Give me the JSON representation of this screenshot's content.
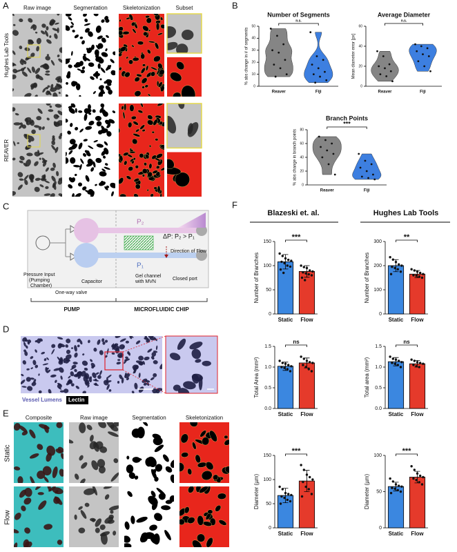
{
  "panel_labels": [
    "A",
    "B",
    "C",
    "D",
    "E",
    "F"
  ],
  "panel_a": {
    "columns": [
      "Raw image",
      "Segmentation",
      "Skeletonization",
      "Subset"
    ],
    "rows": [
      "Hughes Lab Tools",
      "REAVER"
    ]
  },
  "panel_c": {
    "p2": "P₂",
    "p1": "P₁",
    "delta": "ΔP: P₂ > P₁",
    "flow": "Direction of Flow",
    "pressure_input": [
      "Pressure Input",
      "(Pumping",
      "Chamber)"
    ],
    "valve": "One-way valve",
    "capacitor": "Capacitor",
    "gel": [
      "Gel channel",
      "with MVN"
    ],
    "port": "Closed port",
    "pump": "PUMP",
    "chip": "MICROFLUIDIC CHIP"
  },
  "panel_d": {
    "legend": [
      "Vessel Lumens",
      "Lectin"
    ]
  },
  "panel_e": {
    "columns": [
      "Composite",
      "Raw image",
      "Segmentation",
      "Skeletonization"
    ],
    "rows": [
      "Static",
      "Flow"
    ]
  },
  "panel_f": {
    "groups": [
      "Blazeski et. al.",
      "Hughes Lab Tools"
    ]
  },
  "chart_data": [
    {
      "type": "violin",
      "title": "Number of Segments",
      "ylabel": "% abs change in # of segments",
      "categories": [
        "Reaver",
        "Fiji"
      ],
      "colors": [
        "#858585",
        "#3d7fe0"
      ],
      "values": [
        [
          48,
          42,
          35,
          30,
          28,
          22,
          18,
          15,
          10,
          8
        ],
        [
          45,
          25,
          22,
          18,
          15,
          12,
          10,
          8,
          5,
          3
        ]
      ],
      "ylim": [
        0,
        50
      ],
      "yticks": [
        0,
        10,
        20,
        30,
        40,
        50
      ],
      "significance": "n.s."
    },
    {
      "type": "violin",
      "title": "Average Diameter",
      "ylabel": "Mean diameter error [px]",
      "categories": [
        "Reaver",
        "Fiji"
      ],
      "colors": [
        "#858585",
        "#3d7fe0"
      ],
      "values": [
        [
          35,
          30,
          22,
          20,
          18,
          15,
          12,
          10,
          5
        ],
        [
          42,
          40,
          38,
          35,
          32,
          30,
          25,
          20,
          15
        ]
      ],
      "ylim": [
        0,
        60
      ],
      "yticks": [
        0,
        20,
        40,
        60
      ],
      "significance": "n.s."
    },
    {
      "type": "violin",
      "title": "Branch Points",
      "ylabel": "% abs change in branch points",
      "categories": [
        "Reaver",
        "Fiji"
      ],
      "colors": [
        "#858585",
        "#3d7fe0"
      ],
      "values": [
        [
          70,
          65,
          60,
          55,
          50,
          45,
          40,
          30,
          15
        ],
        [
          45,
          35,
          30,
          25,
          20,
          15,
          12,
          10,
          8
        ]
      ],
      "ylim": [
        0,
        80
      ],
      "yticks": [
        0,
        20,
        40,
        60,
        80
      ],
      "significance": "***"
    },
    {
      "type": "bar",
      "ylabel": "Number of Branches",
      "categories": [
        "Static",
        "Flow"
      ],
      "colors": [
        "#3b87e0",
        "#e53a2b"
      ],
      "values": [
        108,
        88
      ],
      "errors": [
        15,
        12
      ],
      "points": [
        [
          125,
          120,
          115,
          112,
          110,
          108,
          105,
          100,
          98,
          92,
          85
        ],
        [
          100,
          97,
          95,
          90,
          88,
          86,
          84,
          82,
          80,
          75,
          70
        ]
      ],
      "ylim": [
        0,
        150
      ],
      "yticks": [
        0,
        50,
        100,
        150
      ],
      "significance": "***"
    },
    {
      "type": "bar",
      "ylabel": "Total Area (mm²)",
      "categories": [
        "Static",
        "Flow"
      ],
      "colors": [
        "#3b87e0",
        "#e53a2b"
      ],
      "values": [
        1.02,
        1.1
      ],
      "errors": [
        0.1,
        0.12
      ],
      "points": [
        [
          1.15,
          1.1,
          1.08,
          1.05,
          1.02,
          1.0,
          0.98,
          0.95,
          0.9
        ],
        [
          1.25,
          1.2,
          1.15,
          1.12,
          1.1,
          1.05,
          1.0,
          0.95,
          0.9
        ]
      ],
      "ylim": [
        0,
        1.5
      ],
      "yticks": [
        {
          "value": 0,
          "label": "0.0"
        },
        0.5,
        {
          "value": 1,
          "label": "1.0"
        },
        1.5
      ],
      "significance": "ns"
    },
    {
      "type": "bar",
      "ylabel": "Diameter (µm)",
      "categories": [
        "Static",
        "Flow"
      ],
      "colors": [
        "#3b87e0",
        "#e53a2b"
      ],
      "values": [
        67,
        97
      ],
      "errors": [
        15,
        22
      ],
      "points": [
        [
          85,
          80,
          72,
          70,
          68,
          65,
          62,
          58,
          55,
          50
        ],
        [
          130,
          120,
          110,
          105,
          100,
          95,
          85,
          80,
          70,
          65
        ]
      ],
      "ylim": [
        0,
        150
      ],
      "yticks": [
        0,
        50,
        100,
        150
      ],
      "significance": "***"
    },
    {
      "type": "bar",
      "ylabel": "Number of Branches",
      "categories": [
        "Static",
        "Flow"
      ],
      "colors": [
        "#3b87e0",
        "#e53a2b"
      ],
      "values": [
        200,
        165
      ],
      "errors": [
        25,
        15
      ],
      "points": [
        [
          235,
          225,
          215,
          205,
          200,
          195,
          190,
          185,
          175,
          165
        ],
        [
          185,
          180,
          175,
          170,
          165,
          160,
          158,
          155,
          150
        ]
      ],
      "ylim": [
        0,
        300
      ],
      "yticks": [
        0,
        100,
        200,
        300
      ],
      "significance": "**"
    },
    {
      "type": "bar",
      "ylabel": "Total area (mm²)",
      "categories": [
        "Static",
        "Flow"
      ],
      "colors": [
        "#3b87e0",
        "#e53a2b"
      ],
      "values": [
        1.13,
        1.08
      ],
      "errors": [
        0.1,
        0.08
      ],
      "points": [
        [
          1.25,
          1.2,
          1.18,
          1.15,
          1.12,
          1.1,
          1.08,
          1.05,
          1.0
        ],
        [
          1.18,
          1.15,
          1.12,
          1.1,
          1.08,
          1.05,
          1.02,
          1.0
        ]
      ],
      "ylim": [
        0,
        1.5
      ],
      "yticks": [
        {
          "value": 0,
          "label": "0.0"
        },
        0.5,
        {
          "value": 1,
          "label": "1.0"
        },
        1.5
      ],
      "significance": "ns"
    },
    {
      "type": "bar",
      "ylabel": "Diameter (µm)",
      "categories": [
        "Static",
        "Flow"
      ],
      "colors": [
        "#3b87e0",
        "#e53a2b"
      ],
      "values": [
        57,
        70
      ],
      "errors": [
        6,
        8
      ],
      "points": [
        [
          68,
          64,
          60,
          58,
          57,
          55,
          54,
          52,
          50,
          48
        ],
        [
          85,
          80,
          75,
          72,
          70,
          68,
          66,
          63,
          60
        ]
      ],
      "ylim": [
        0,
        100
      ],
      "yticks": [
        0,
        50,
        100
      ],
      "significance": "***"
    }
  ]
}
